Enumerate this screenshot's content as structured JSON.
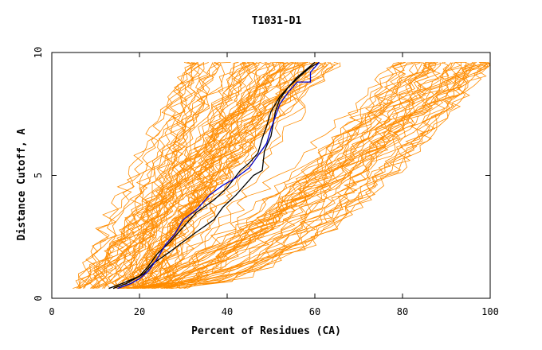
{
  "chart_data": {
    "type": "line",
    "title": "T1031-D1",
    "xlabel": "Percent of Residues (CA)",
    "ylabel": "Distance Cutoff, A",
    "xlim": [
      0,
      100
    ],
    "ylim": [
      0,
      10
    ],
    "x_ticks": [
      0,
      20,
      40,
      60,
      80,
      100
    ],
    "y_ticks": [
      0,
      5,
      10
    ],
    "grid": false,
    "legend": "none",
    "colors": {
      "background_models": "#ff8c00",
      "highlight_a": "#000000",
      "highlight_b": "#0000cc"
    },
    "highlighted_series": [
      {
        "color": "#000000",
        "points": [
          [
            14,
            0.4
          ],
          [
            17,
            0.6
          ],
          [
            21,
            1.0
          ],
          [
            23,
            1.4
          ],
          [
            27,
            1.9
          ],
          [
            30,
            2.3
          ],
          [
            33,
            2.7
          ],
          [
            37,
            3.2
          ],
          [
            39,
            3.7
          ],
          [
            42,
            4.2
          ],
          [
            44,
            4.6
          ],
          [
            46,
            5.0
          ],
          [
            48,
            5.2
          ],
          [
            48.5,
            6.0
          ],
          [
            50,
            6.6
          ],
          [
            50.5,
            7.1
          ],
          [
            51,
            7.6
          ],
          [
            52,
            8.1
          ],
          [
            54,
            8.6
          ],
          [
            56,
            9.0
          ],
          [
            58,
            9.3
          ],
          [
            60,
            9.6
          ]
        ]
      },
      {
        "color": "#000000",
        "points": [
          [
            13,
            0.4
          ],
          [
            16,
            0.6
          ],
          [
            20,
            0.9
          ],
          [
            22,
            1.3
          ],
          [
            24,
            1.8
          ],
          [
            27,
            2.3
          ],
          [
            30,
            2.9
          ],
          [
            33,
            3.5
          ],
          [
            37,
            4.0
          ],
          [
            40,
            4.5
          ],
          [
            43,
            5.2
          ],
          [
            45,
            5.5
          ],
          [
            47,
            5.9
          ],
          [
            48,
            6.5
          ],
          [
            49,
            7.0
          ],
          [
            50,
            7.6
          ],
          [
            52,
            8.2
          ],
          [
            54,
            8.6
          ],
          [
            57,
            9.1
          ],
          [
            59,
            9.4
          ],
          [
            61,
            9.6
          ]
        ]
      },
      {
        "color": "#0000cc",
        "points": [
          [
            15,
            0.4
          ],
          [
            18,
            0.6
          ],
          [
            20,
            0.8
          ],
          [
            22,
            1.1
          ],
          [
            24,
            1.6
          ],
          [
            26,
            2.2
          ],
          [
            28,
            2.6
          ],
          [
            30,
            3.2
          ],
          [
            33,
            3.6
          ],
          [
            36,
            4.2
          ],
          [
            39,
            4.6
          ],
          [
            42,
            4.9
          ],
          [
            45,
            5.3
          ],
          [
            47,
            5.8
          ],
          [
            49,
            6.3
          ],
          [
            50,
            6.9
          ],
          [
            51,
            7.4
          ],
          [
            52,
            7.9
          ],
          [
            54,
            8.4
          ],
          [
            56,
            8.8
          ],
          [
            59,
            8.8
          ],
          [
            59,
            9.2
          ],
          [
            61,
            9.6
          ]
        ]
      }
    ],
    "background_series_note_free": true
  }
}
